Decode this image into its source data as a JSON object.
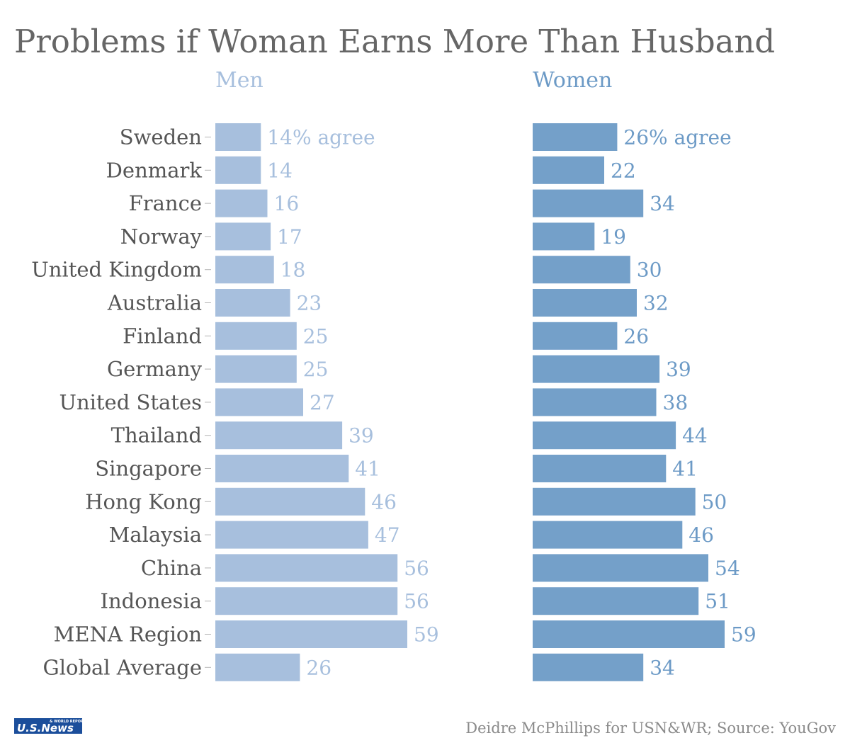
{
  "chart_data": {
    "type": "bar",
    "orientation": "horizontal",
    "title": "Problems if Woman Earns More Than Husband",
    "categories": [
      "Sweden",
      "Denmark",
      "France",
      "Norway",
      "United Kingdom",
      "Australia",
      "Finland",
      "Germany",
      "United States",
      "Thailand",
      "Singapore",
      "Hong Kong",
      "Malaysia",
      "China",
      "Indonesia",
      "MENA Region",
      "Global Average"
    ],
    "series": [
      {
        "name": "Men",
        "values": [
          14,
          14,
          16,
          17,
          18,
          23,
          25,
          25,
          27,
          39,
          41,
          46,
          47,
          56,
          56,
          59,
          26
        ],
        "color": "#a7bfdd",
        "text_color": "#a7bfdd"
      },
      {
        "name": "Women",
        "values": [
          26,
          22,
          34,
          19,
          30,
          32,
          26,
          39,
          38,
          44,
          41,
          50,
          46,
          54,
          51,
          59,
          34
        ],
        "color": "#74a0c9",
        "text_color": "#6c9ac6"
      }
    ],
    "value_suffix": "% agree",
    "legend": "none",
    "grid": false
  },
  "footer": {
    "logo_text": "U.S.News",
    "logo_subtext": "& WORLD REPORT",
    "source": "Deidre McPhillips for USN&WR; Source: YouGov"
  }
}
